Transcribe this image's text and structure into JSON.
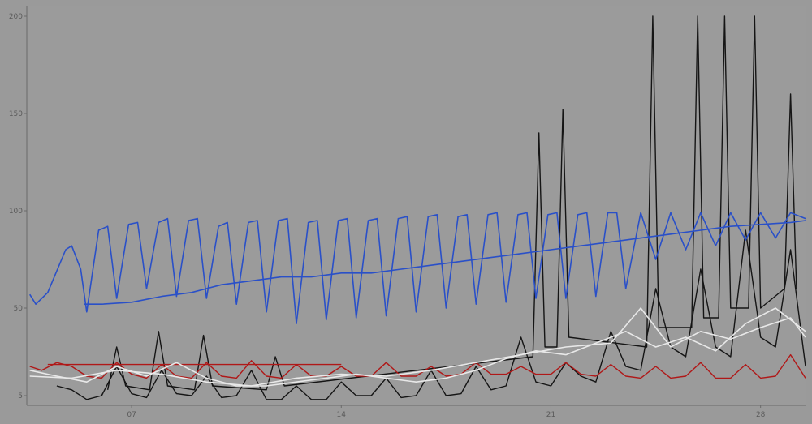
{
  "chart_data": {
    "type": "line",
    "title": "",
    "xlabel": "",
    "ylabel": "",
    "xlim": [
      3.5,
      29.5
    ],
    "ylim": [
      0,
      205
    ],
    "grid": false,
    "legend": "none",
    "y_ticks": [
      {
        "value": 5,
        "label": "5"
      },
      {
        "value": 50,
        "label": "50"
      },
      {
        "value": 100,
        "label": "100"
      },
      {
        "value": 150,
        "label": "150"
      },
      {
        "value": 200,
        "label": "200"
      }
    ],
    "x_ticks": [
      {
        "value": 7,
        "label": "07"
      },
      {
        "value": 14,
        "label": "14"
      },
      {
        "value": 21,
        "label": "21"
      },
      {
        "value": 28,
        "label": "28"
      }
    ],
    "colors": {
      "background": "#9a9a9a",
      "plot_background": "#9b9b9b",
      "axis": "#6a6a6a",
      "blue": "#2a50c8",
      "red": "#b01818",
      "black": "#151515",
      "white": "#e8e8e8"
    },
    "series": [
      {
        "color": "blue",
        "values": [
          [
            3.6,
            57
          ],
          [
            3.8,
            52
          ],
          [
            4.2,
            58
          ],
          [
            4.8,
            80
          ],
          [
            5.0,
            82
          ],
          [
            5.3,
            70
          ],
          [
            5.5,
            48
          ],
          [
            5.9,
            90
          ],
          [
            6.2,
            92
          ],
          [
            6.5,
            55
          ],
          [
            6.9,
            93
          ],
          [
            7.2,
            94
          ],
          [
            7.5,
            60
          ],
          [
            7.9,
            94
          ],
          [
            8.2,
            96
          ],
          [
            8.5,
            56
          ],
          [
            8.9,
            95
          ],
          [
            9.2,
            96
          ],
          [
            9.5,
            55
          ],
          [
            9.9,
            92
          ],
          [
            10.2,
            94
          ],
          [
            10.5,
            52
          ],
          [
            10.9,
            94
          ],
          [
            11.2,
            95
          ],
          [
            11.5,
            48
          ],
          [
            11.9,
            95
          ],
          [
            12.2,
            96
          ],
          [
            12.5,
            42
          ],
          [
            12.9,
            94
          ],
          [
            13.2,
            95
          ],
          [
            13.5,
            44
          ],
          [
            13.9,
            95
          ],
          [
            14.2,
            96
          ],
          [
            14.5,
            45
          ],
          [
            14.9,
            95
          ],
          [
            15.2,
            96
          ],
          [
            15.5,
            46
          ],
          [
            15.9,
            96
          ],
          [
            16.2,
            97
          ],
          [
            16.5,
            48
          ],
          [
            16.9,
            97
          ],
          [
            17.2,
            98
          ],
          [
            17.5,
            50
          ],
          [
            17.9,
            97
          ],
          [
            18.2,
            98
          ],
          [
            18.5,
            52
          ],
          [
            18.9,
            98
          ],
          [
            19.2,
            99
          ],
          [
            19.5,
            53
          ],
          [
            19.9,
            98
          ],
          [
            20.2,
            99
          ],
          [
            20.5,
            55
          ],
          [
            20.9,
            98
          ],
          [
            21.2,
            99
          ],
          [
            21.5,
            55
          ],
          [
            21.9,
            98
          ],
          [
            22.2,
            99
          ],
          [
            22.5,
            56
          ],
          [
            22.9,
            99
          ],
          [
            23.2,
            99
          ],
          [
            23.5,
            60
          ],
          [
            24,
            99
          ],
          [
            24.5,
            75
          ],
          [
            25,
            99
          ],
          [
            25.5,
            80
          ],
          [
            26,
            99
          ],
          [
            26.5,
            82
          ],
          [
            27,
            99
          ],
          [
            27.5,
            85
          ],
          [
            28,
            99
          ],
          [
            28.5,
            86
          ],
          [
            29,
            99
          ],
          [
            29.5,
            96
          ]
        ]
      },
      {
        "color": "blue",
        "values": [
          [
            5.4,
            52
          ],
          [
            6.0,
            52
          ],
          [
            7.0,
            53
          ],
          [
            8.0,
            56
          ],
          [
            9.0,
            58
          ],
          [
            10.0,
            62
          ],
          [
            11.0,
            64
          ],
          [
            12.0,
            66
          ],
          [
            13.0,
            66
          ],
          [
            14.0,
            68
          ],
          [
            15.0,
            68
          ],
          [
            16.0,
            70
          ],
          [
            17.0,
            72
          ],
          [
            18.0,
            74
          ],
          [
            19.0,
            76
          ],
          [
            20.0,
            78
          ],
          [
            21.0,
            80
          ],
          [
            22.0,
            82
          ],
          [
            23.0,
            84
          ],
          [
            24.0,
            86
          ],
          [
            25.0,
            88
          ],
          [
            26.0,
            90
          ],
          [
            27.0,
            92
          ],
          [
            28.0,
            93
          ],
          [
            29.0,
            94
          ],
          [
            29.5,
            95
          ]
        ]
      },
      {
        "color": "red",
        "values": [
          [
            3.6,
            20
          ],
          [
            4,
            18
          ],
          [
            4.5,
            22
          ],
          [
            5,
            20
          ],
          [
            5.5,
            15
          ],
          [
            6,
            14
          ],
          [
            6.5,
            22
          ],
          [
            7,
            16
          ],
          [
            7.5,
            14
          ],
          [
            8,
            21
          ],
          [
            8.5,
            15
          ],
          [
            9,
            14
          ],
          [
            9.5,
            22
          ],
          [
            10,
            15
          ],
          [
            10.5,
            14
          ],
          [
            11,
            23
          ],
          [
            11.5,
            15
          ],
          [
            12,
            14
          ],
          [
            12.5,
            21
          ],
          [
            13,
            15
          ],
          [
            13.5,
            15
          ],
          [
            14,
            20
          ],
          [
            14.5,
            15
          ],
          [
            15,
            15
          ],
          [
            15.5,
            22
          ],
          [
            16,
            15
          ],
          [
            16.5,
            15
          ],
          [
            17,
            20
          ],
          [
            17.5,
            15
          ],
          [
            18,
            16
          ],
          [
            18.5,
            22
          ],
          [
            19,
            16
          ],
          [
            19.5,
            16
          ],
          [
            20,
            20
          ],
          [
            20.5,
            16
          ],
          [
            21,
            16
          ],
          [
            21.5,
            22
          ],
          [
            22,
            16
          ],
          [
            22.5,
            15
          ],
          [
            23,
            21
          ],
          [
            23.5,
            15
          ],
          [
            24,
            14
          ],
          [
            24.5,
            20
          ],
          [
            25,
            14
          ],
          [
            25.5,
            15
          ],
          [
            26,
            22
          ],
          [
            26.5,
            14
          ],
          [
            27,
            14
          ],
          [
            27.5,
            21
          ],
          [
            28,
            14
          ],
          [
            28.5,
            15
          ],
          [
            29,
            26
          ],
          [
            29.5,
            14
          ]
        ]
      },
      {
        "color": "red",
        "values": [
          [
            4.2,
            21
          ],
          [
            6,
            21
          ],
          [
            8,
            21
          ],
          [
            10,
            21
          ],
          [
            12,
            21
          ],
          [
            14,
            21
          ]
        ]
      },
      {
        "color": "black",
        "values": [
          [
            4.5,
            10
          ],
          [
            5,
            8
          ],
          [
            5.5,
            3
          ],
          [
            6,
            5
          ],
          [
            6.5,
            20
          ],
          [
            7,
            6
          ],
          [
            7.5,
            4
          ],
          [
            8,
            18
          ],
          [
            8.5,
            6
          ],
          [
            9,
            5
          ],
          [
            9.5,
            15
          ],
          [
            10,
            4
          ],
          [
            10.5,
            5
          ],
          [
            11,
            18
          ],
          [
            11.5,
            3
          ],
          [
            12,
            3
          ],
          [
            12.5,
            10
          ],
          [
            13,
            3
          ],
          [
            13.5,
            3
          ],
          [
            14,
            12
          ],
          [
            14.5,
            5
          ],
          [
            15,
            5
          ],
          [
            15.5,
            14
          ],
          [
            16,
            4
          ],
          [
            16.5,
            5
          ],
          [
            17,
            18
          ],
          [
            17.5,
            5
          ],
          [
            18,
            6
          ],
          [
            18.5,
            20
          ],
          [
            19,
            8
          ],
          [
            19.5,
            10
          ],
          [
            20,
            35
          ],
          [
            20.5,
            12
          ],
          [
            21,
            10
          ],
          [
            21.5,
            22
          ],
          [
            22,
            15
          ],
          [
            22.5,
            12
          ],
          [
            23,
            38
          ],
          [
            23.5,
            20
          ],
          [
            24,
            18
          ],
          [
            24.5,
            60
          ],
          [
            25,
            30
          ],
          [
            25.5,
            25
          ],
          [
            26,
            70
          ],
          [
            26.5,
            30
          ],
          [
            27,
            25
          ],
          [
            27.5,
            90
          ],
          [
            28,
            35
          ],
          [
            28.5,
            30
          ],
          [
            29,
            80
          ],
          [
            29.5,
            20
          ]
        ]
      },
      {
        "color": "black",
        "values": [
          [
            6.2,
            8
          ],
          [
            6.5,
            30
          ],
          [
            6.8,
            10
          ],
          [
            7.6,
            8
          ],
          [
            7.9,
            38
          ],
          [
            8.2,
            10
          ],
          [
            9.1,
            8
          ],
          [
            9.4,
            36
          ],
          [
            9.7,
            10
          ],
          [
            11.5,
            8
          ],
          [
            11.8,
            25
          ],
          [
            12.1,
            10
          ],
          [
            20.4,
            25
          ],
          [
            20.6,
            140
          ],
          [
            20.8,
            30
          ],
          [
            21.2,
            30
          ],
          [
            21.4,
            152
          ],
          [
            21.6,
            35
          ],
          [
            24.2,
            30
          ],
          [
            24.4,
            200
          ],
          [
            24.6,
            40
          ],
          [
            25.7,
            40
          ],
          [
            25.9,
            200
          ],
          [
            26.1,
            45
          ],
          [
            26.6,
            45
          ],
          [
            26.8,
            200
          ],
          [
            27.0,
            50
          ],
          [
            27.6,
            50
          ],
          [
            27.8,
            200
          ],
          [
            28.0,
            50
          ],
          [
            28.8,
            60
          ],
          [
            29.0,
            160
          ],
          [
            29.2,
            60
          ]
        ]
      },
      {
        "color": "white",
        "values": [
          [
            3.6,
            18
          ],
          [
            4.5,
            15
          ],
          [
            5.5,
            12
          ],
          [
            6.5,
            20
          ],
          [
            7.5,
            15
          ],
          [
            8.5,
            22
          ],
          [
            9.5,
            14
          ],
          [
            10.5,
            10
          ],
          [
            11.5,
            10
          ],
          [
            12.5,
            12
          ],
          [
            13.5,
            14
          ],
          [
            14.5,
            16
          ],
          [
            15.5,
            14
          ],
          [
            16.5,
            12
          ],
          [
            17.5,
            14
          ],
          [
            18.5,
            18
          ],
          [
            19.5,
            24
          ],
          [
            20.5,
            28
          ],
          [
            21.5,
            26
          ],
          [
            22.5,
            32
          ],
          [
            23.5,
            38
          ],
          [
            24.5,
            30
          ],
          [
            25.5,
            35
          ],
          [
            26.5,
            28
          ],
          [
            27.5,
            42
          ],
          [
            28.5,
            50
          ],
          [
            29.5,
            38
          ]
        ]
      },
      {
        "color": "white",
        "values": [
          [
            3.6,
            15
          ],
          [
            5,
            14
          ],
          [
            6.5,
            18
          ],
          [
            8,
            16
          ],
          [
            9.5,
            12
          ],
          [
            11,
            10
          ],
          [
            12.5,
            14
          ],
          [
            14,
            16
          ],
          [
            15.5,
            15
          ],
          [
            17,
            18
          ],
          [
            18.5,
            22
          ],
          [
            20,
            26
          ],
          [
            21.5,
            30
          ],
          [
            23,
            32
          ],
          [
            24,
            50
          ],
          [
            25,
            30
          ],
          [
            26,
            38
          ],
          [
            27,
            34
          ],
          [
            28,
            40
          ],
          [
            29,
            45
          ],
          [
            29.5,
            35
          ]
        ]
      }
    ]
  }
}
